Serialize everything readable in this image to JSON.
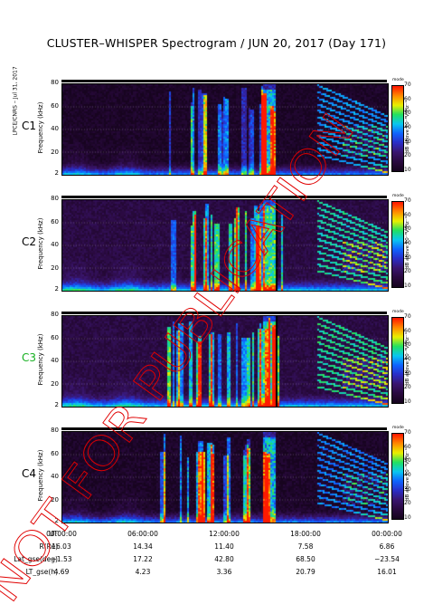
{
  "title": "CLUSTER–WHISPER Spectrogram / JUN 20, 2017 (Day 171)",
  "side_credit": "LPCE/CNRS – Jul 31, 2017",
  "watermark": "NOT FOR PUBLICATION",
  "colors": {
    "spectrogram_palette": [
      "#17041f",
      "#2a0a40",
      "#3a1670",
      "#2a2ec8",
      "#0f64ff",
      "#09c8f0",
      "#22e060",
      "#eaf000",
      "#ff8a00",
      "#ff1a00"
    ],
    "watermark": "#e00000",
    "craft_c3": "#16b020"
  },
  "chart_data": [
    {
      "type": "heatmap",
      "id": "C1",
      "label": "C1",
      "ylabel": "Frequency (kHz)",
      "yticks": [
        "80",
        "60",
        "40",
        "20",
        "2"
      ],
      "ylim": [
        2,
        80
      ],
      "colorbar": {
        "label": "dB above 10⁻⁸V²Hz⁻¹",
        "ticks": [
          "70",
          "60",
          "50",
          "40",
          "30",
          "20",
          "10"
        ],
        "range": [
          10,
          70
        ],
        "top_label": "mode"
      },
      "x": [
        "00:00:00",
        "06:00:00",
        "12:00:00",
        "18:00:00",
        "00:00:00"
      ],
      "seed": 1,
      "gap": false,
      "bg_level": 12,
      "bg_noise": 6,
      "wave_level": 40,
      "wave_x0": 0.4,
      "line_strength": 28
    },
    {
      "type": "heatmap",
      "id": "C2",
      "label": "C2",
      "ylabel": "Frequency (kHz)",
      "yticks": [
        "80",
        "60",
        "40",
        "20",
        "2"
      ],
      "ylim": [
        2,
        80
      ],
      "colorbar": {
        "label": "dB above 10⁻⁸V²Hz⁻¹",
        "ticks": [
          "70",
          "60",
          "50",
          "40",
          "30",
          "20",
          "10"
        ],
        "range": [
          10,
          70
        ],
        "top_label": "mode"
      },
      "x": [
        "00:00:00",
        "06:00:00",
        "12:00:00",
        "18:00:00",
        "00:00:00"
      ],
      "seed": 2,
      "gap": true,
      "bg_level": 17,
      "bg_noise": 6,
      "wave_level": 42,
      "wave_x0": 0.43,
      "line_strength": 32
    },
    {
      "type": "heatmap",
      "id": "C3",
      "label": "C3",
      "ylabel": "Frequency (kHz)",
      "yticks": [
        "80",
        "60",
        "40",
        "20",
        "2"
      ],
      "ylim": [
        2,
        80
      ],
      "colorbar": {
        "label": "dB above 10⁻⁸V²Hz⁻¹",
        "ticks": [
          "70",
          "60",
          "50",
          "40",
          "30",
          "20",
          "10"
        ],
        "range": [
          10,
          70
        ],
        "top_label": "mode"
      },
      "x": [
        "00:00:00",
        "06:00:00",
        "12:00:00",
        "18:00:00",
        "00:00:00"
      ],
      "seed": 3,
      "gap": true,
      "bg_level": 17,
      "bg_noise": 6,
      "wave_level": 44,
      "wave_x0": 0.36,
      "line_strength": 34
    },
    {
      "type": "heatmap",
      "id": "C4",
      "label": "C4",
      "ylabel": "Frequency (kHz)",
      "yticks": [
        "80",
        "60",
        "40",
        "20",
        "2"
      ],
      "ylim": [
        2,
        80
      ],
      "colorbar": {
        "label": "dB above 10⁻⁸V²Hz⁻¹",
        "ticks": [
          "70",
          "60",
          "50",
          "40",
          "30",
          "20",
          "10"
        ],
        "range": [
          10,
          70
        ],
        "top_label": "mode"
      },
      "x": [
        "00:00:00",
        "06:00:00",
        "12:00:00",
        "18:00:00",
        "00:00:00"
      ],
      "seed": 4,
      "gap": false,
      "bg_level": 12,
      "bg_noise": 7,
      "wave_level": 38,
      "wave_x0": 0.38,
      "line_strength": 30
    }
  ],
  "ephemeris": {
    "rows": [
      {
        "label": "UT",
        "values": [
          "00:00:00",
          "06:00:00",
          "12:00:00",
          "18:00:00",
          "00:00:00"
        ]
      },
      {
        "label": "R(Re)",
        "values": [
          "16.03",
          "14.34",
          "11.40",
          "7.58",
          "6.86"
        ]
      },
      {
        "label": "Lat_gse(deg)",
        "values": [
          "−1.53",
          "17.22",
          "42.80",
          "68.50",
          "−23.54"
        ]
      },
      {
        "label": "LT_gse(h)",
        "values": [
          "4.69",
          "4.23",
          "3.36",
          "20.79",
          "16.01"
        ]
      }
    ]
  }
}
